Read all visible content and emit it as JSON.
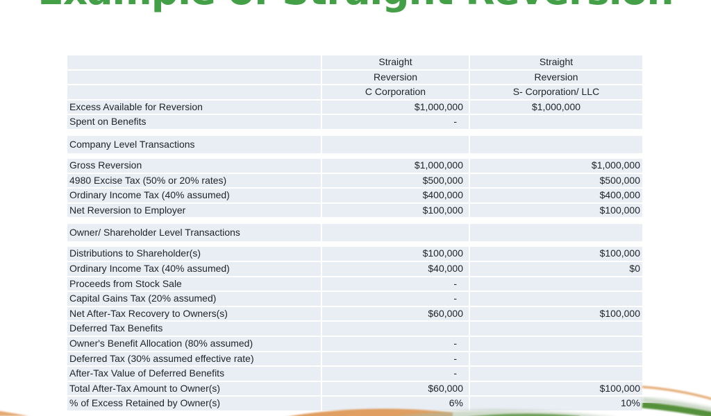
{
  "title": {
    "text": "Example of Straight Reversion",
    "color": "#43a047"
  },
  "chart_data": {
    "type": "table",
    "title": "Example of Straight Reversion",
    "header_lines": {
      "c": [
        "Straight",
        "Reversion",
        "C Corporation"
      ],
      "s": [
        "Straight",
        "Reversion",
        "S- Corporation/ LLC"
      ]
    },
    "rows": [
      {
        "kind": "data",
        "label": "Excess Available for Reversion",
        "c": "$1,000,000",
        "s": "$1,000,000",
        "s_align": "center"
      },
      {
        "kind": "data",
        "label": "Spent on Benefits",
        "c": "-",
        "s": ""
      },
      {
        "kind": "section",
        "label": "Company Level Transactions",
        "c": "",
        "s": ""
      },
      {
        "kind": "data",
        "label": "Gross Reversion",
        "c": "$1,000,000",
        "s": "$1,000,000"
      },
      {
        "kind": "data",
        "label": "4980 Excise Tax (50% or 20% rates)",
        "c": "$500,000",
        "s": "$500,000"
      },
      {
        "kind": "data",
        "label": "Ordinary Income Tax (40% assumed)",
        "c": "$400,000",
        "s": "$400,000"
      },
      {
        "kind": "data",
        "label": "Net Reversion to Employer",
        "c": "$100,000",
        "s": "$100,000"
      },
      {
        "kind": "section",
        "label": "Owner/ Shareholder Level Transactions",
        "c": "",
        "s": ""
      },
      {
        "kind": "data",
        "label": "Distributions to Shareholder(s)",
        "c": "$100,000",
        "s": "$100,000"
      },
      {
        "kind": "data",
        "label": "Ordinary Income Tax (40% assumed)",
        "c": "$40,000",
        "s": "$0"
      },
      {
        "kind": "data",
        "label": "Proceeds from Stock Sale",
        "c": "-",
        "s": ""
      },
      {
        "kind": "data",
        "label": "Capital Gains Tax (20% assumed)",
        "c": "-",
        "s": ""
      },
      {
        "kind": "data",
        "label": "Net After-Tax Recovery to Owners(s)",
        "c": "$60,000",
        "s": "$100,000"
      },
      {
        "kind": "data",
        "label": "Deferred Tax Benefits",
        "c": "",
        "s": ""
      },
      {
        "kind": "data",
        "label": "Owner's Benefit Allocation (80% assumed)",
        "c": "-",
        "s": ""
      },
      {
        "kind": "data",
        "label": "Deferred Tax (30% assumed effective rate)",
        "c": "-",
        "s": ""
      },
      {
        "kind": "data",
        "label": "After-Tax Value of Deferred Benefits",
        "c": "-",
        "s": ""
      },
      {
        "kind": "data",
        "label": "Total After-Tax Amount to Owner(s)",
        "c": "$60,000",
        "s": "$100,000"
      },
      {
        "kind": "data",
        "label": "% of Excess Retained by Owner(s)",
        "c": "6%",
        "s": "10%"
      }
    ]
  },
  "table_style": {
    "cell_bg": "#e9edf4",
    "grid": "#ffffff",
    "text": "#20242b"
  },
  "decor": {
    "orange": "#dd9450",
    "green": "#4e8c33",
    "haze": "#a9bda2"
  }
}
